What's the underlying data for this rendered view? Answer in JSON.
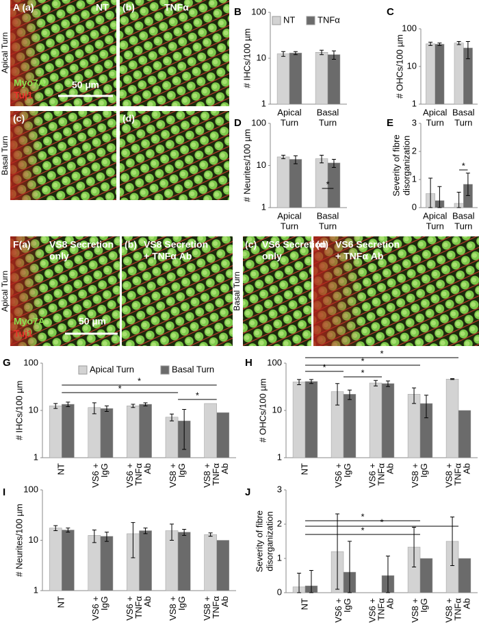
{
  "image_panels": [
    {
      "label": "A (a)",
      "caption": [
        "NT"
      ],
      "stains": [
        "Myo7A",
        "Tuj1"
      ],
      "scale_bar": "50 µm"
    },
    {
      "label": "(b)",
      "caption": [
        "TNFα"
      ]
    },
    {
      "label": "(c)"
    },
    {
      "label": "(d)"
    },
    {
      "label": "F(a)",
      "caption": [
        "VS8 Secretion",
        "only"
      ],
      "stains": [
        "Myo7A",
        "Tuj1"
      ],
      "scale_bar": "50 µm"
    },
    {
      "label": "(b)",
      "caption": [
        "VS8 Secretion",
        "+ TNFα Ab"
      ]
    },
    {
      "label": "(c)",
      "caption": [
        "VS6 Secretion",
        "only"
      ]
    },
    {
      "label": "(d)",
      "caption": [
        "VS6 Secretion",
        "+ TNFα Ab"
      ]
    }
  ],
  "row_labels": [
    "Apical Turn",
    "Basal Turn",
    "Apical Turn",
    "Basal Turn"
  ],
  "chart_data": [
    {
      "type": "bar",
      "panel": "B",
      "ylabel": "# IHCs/100 µm",
      "log_scale": true,
      "ylim": [
        1,
        100
      ],
      "yticks": [
        1,
        10,
        100
      ],
      "categories": [
        [
          "Apical",
          "Turn"
        ],
        [
          "Basal",
          "Turn"
        ]
      ],
      "series": [
        {
          "name": "NT",
          "color": "#d3d3d3",
          "values": [
            12.5,
            13.5
          ],
          "errors": [
            1.5,
            1.5
          ]
        },
        {
          "name": "TNFα",
          "color": "#6b6b6b",
          "values": [
            13,
            12
          ],
          "errors": [
            1,
            2.5
          ]
        }
      ]
    },
    {
      "type": "bar",
      "panel": "C",
      "ylabel": "# OHCs/100 µm",
      "log_scale": true,
      "ylim": [
        1,
        100
      ],
      "yticks": [
        1,
        10,
        100
      ],
      "categories": [
        [
          "Apical",
          "Turn"
        ],
        [
          "Basal",
          "Turn"
        ]
      ],
      "series": [
        {
          "color": "#d3d3d3",
          "values": [
            40,
            42
          ],
          "errors": [
            4,
            4
          ]
        },
        {
          "color": "#6b6b6b",
          "values": [
            39,
            31
          ],
          "errors": [
            3,
            15
          ]
        }
      ]
    },
    {
      "type": "bar",
      "panel": "D",
      "ylabel": "# Neurites/100 µm",
      "log_scale": true,
      "ylim": [
        1,
        100
      ],
      "yticks": [
        1,
        10,
        100
      ],
      "categories": [
        [
          "Apical",
          "Turn"
        ],
        [
          "Basal",
          "Turn"
        ]
      ],
      "series": [
        {
          "color": "#d3d3d3",
          "values": [
            16,
            14.5
          ],
          "errors": [
            1.5,
            3
          ]
        },
        {
          "color": "#6b6b6b",
          "values": [
            14,
            11.5
          ],
          "errors": [
            3,
            2.5
          ]
        }
      ],
      "annotations": [
        "*"
      ]
    },
    {
      "type": "bar",
      "panel": "E",
      "ylabel": [
        "Severity of fibre",
        "disorganization"
      ],
      "log_scale": false,
      "ylim": [
        0,
        3
      ],
      "yticks": [
        0,
        1,
        2,
        3
      ],
      "categories": [
        [
          "Apical",
          "Turn"
        ],
        [
          "Basal",
          "Turn"
        ]
      ],
      "series": [
        {
          "color": "#d3d3d3",
          "values": [
            0.5,
            0.15
          ],
          "errors": [
            0.55,
            0.4
          ]
        },
        {
          "color": "#6b6b6b",
          "values": [
            0.25,
            0.83
          ],
          "errors": [
            0.5,
            0.4
          ]
        }
      ],
      "annotations": [
        "*"
      ]
    },
    {
      "type": "bar",
      "panel": "G",
      "ylabel": "# IHCs/100 µm",
      "log_scale": true,
      "ylim": [
        1,
        100
      ],
      "yticks": [
        1,
        10,
        100
      ],
      "categories": [
        [
          "NT"
        ],
        [
          "VS6 +",
          "IgG"
        ],
        [
          "VS6 +",
          "TNFα",
          "Ab"
        ],
        [
          "VS8 +",
          "IgG"
        ],
        [
          "VS8 +",
          "TNFα",
          "Ab"
        ]
      ],
      "series": [
        {
          "name": "Apical Turn",
          "color": "#d3d3d3",
          "values": [
            12.5,
            11.5,
            12.5,
            7.2,
            14
          ],
          "errors": [
            1.5,
            3,
            1,
            1.2,
            null
          ]
        },
        {
          "name": "Basal Turn",
          "color": "#6b6b6b",
          "values": [
            13.5,
            11,
            13.5,
            6,
            9
          ],
          "errors": [
            1.5,
            1.5,
            1,
            4.5,
            null
          ]
        }
      ],
      "annotations": [
        "*",
        "*",
        "*"
      ]
    },
    {
      "type": "bar",
      "panel": "H",
      "ylabel": "# OHCs/100 µm",
      "log_scale": true,
      "ylim": [
        1,
        100
      ],
      "yticks": [
        1,
        10,
        100
      ],
      "categories": [
        [
          "NT"
        ],
        [
          "VS6 +",
          "IgG"
        ],
        [
          "VS6 +",
          "TNFα",
          "Ab"
        ],
        [
          "VS8 +",
          "IgG"
        ],
        [
          "VS8 +",
          "TNFα",
          "Ab"
        ]
      ],
      "series": [
        {
          "color": "#d3d3d3",
          "values": [
            40,
            25,
            38,
            22,
            46
          ],
          "errors": [
            5,
            12,
            5,
            8,
            1
          ]
        },
        {
          "color": "#6b6b6b",
          "values": [
            41,
            22,
            37,
            14,
            10
          ],
          "errors": [
            4,
            5,
            5,
            7,
            null
          ]
        }
      ],
      "annotations": [
        "*",
        "*",
        "*",
        "*"
      ]
    },
    {
      "type": "bar",
      "panel": "I",
      "ylabel": "# Neurites/100 µm",
      "log_scale": true,
      "ylim": [
        1,
        100
      ],
      "yticks": [
        1,
        10,
        100
      ],
      "categories": [
        [
          "NT"
        ],
        [
          "VS6 +",
          "IgG"
        ],
        [
          "VS6 +",
          "TNFα",
          "Ab"
        ],
        [
          "VS8 +",
          "IgG"
        ],
        [
          "VS8 +",
          "TNFα",
          "Ab"
        ]
      ],
      "series": [
        {
          "color": "#d3d3d3",
          "values": [
            17.5,
            12.5,
            13.5,
            15.5,
            13
          ],
          "errors": [
            2,
            3.5,
            9,
            5.5,
            1
          ]
        },
        {
          "color": "#6b6b6b",
          "values": [
            16,
            12,
            15.5,
            14.5,
            10
          ],
          "errors": [
            1.5,
            2.5,
            2,
            2,
            null
          ]
        }
      ]
    },
    {
      "type": "bar",
      "panel": "J",
      "ylabel": [
        "Severity of fibre",
        "disorganization"
      ],
      "log_scale": false,
      "ylim": [
        0,
        3
      ],
      "yticks": [
        0,
        1,
        2,
        3
      ],
      "categories": [
        [
          "NT"
        ],
        [
          "VS6 +",
          "IgG"
        ],
        [
          "VS6 +",
          "TNFα",
          "Ab"
        ],
        [
          "VS8 +",
          "IgG"
        ],
        [
          "VS8 +",
          "TNFα",
          "Ab"
        ]
      ],
      "series": [
        {
          "color": "#d3d3d3",
          "values": [
            0.17,
            1.2,
            0,
            1.33,
            1.5
          ],
          "errors": [
            0.4,
            1.1,
            null,
            0.58,
            0.71
          ]
        },
        {
          "color": "#6b6b6b",
          "values": [
            0.2,
            0.6,
            0.5,
            1,
            1
          ],
          "errors": [
            0.45,
            0.9,
            0.57,
            null,
            null
          ]
        }
      ],
      "annotations": [
        "*",
        "*",
        "*"
      ]
    }
  ]
}
